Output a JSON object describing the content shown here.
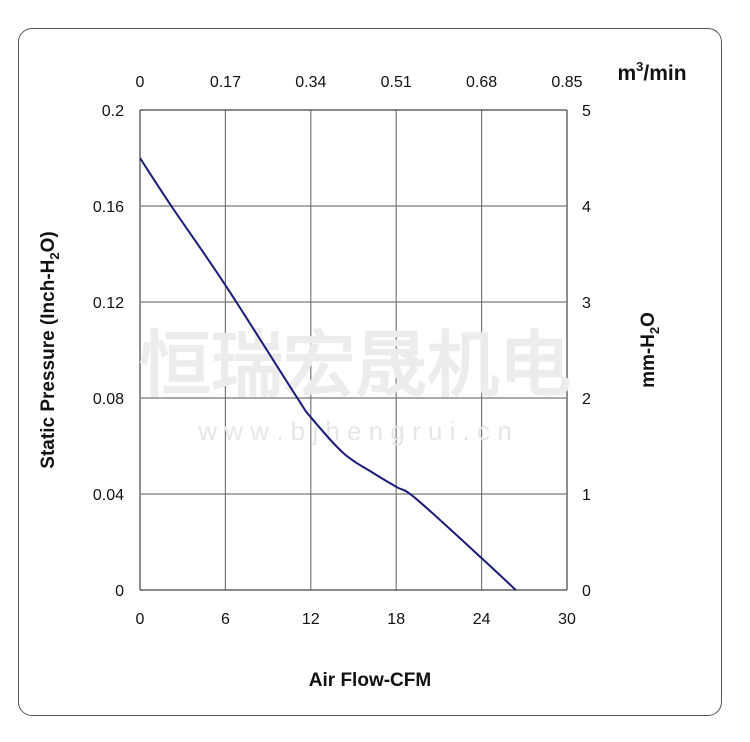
{
  "chart_data": {
    "type": "line",
    "title": "",
    "xlabel": "Air Flow-CFM",
    "ylabel": "Static Pressure (Inch-H2O)",
    "ylabel_right": "mm-H2O",
    "xlabel_top_unit": "m³/min",
    "xlim": [
      0,
      30
    ],
    "ylim": [
      0,
      0.2
    ],
    "ylim_right": [
      0,
      5
    ],
    "xlim_top": [
      0,
      0.85
    ],
    "x_ticks": [
      "0",
      "6",
      "12",
      "18",
      "24",
      "30"
    ],
    "y_ticks": [
      "0",
      "0.04",
      "0.08",
      "0.12",
      "0.16",
      "0.2"
    ],
    "y_ticks_right": [
      "0",
      "1",
      "2",
      "3",
      "4",
      "5"
    ],
    "x_ticks_top": [
      "0",
      "0.17",
      "0.34",
      "0.51",
      "0.68",
      "0.85"
    ],
    "grid": true,
    "line_color": "#1a1a7a",
    "series": [
      {
        "x": [
          0,
          2.2,
          6,
          11,
          12,
          14.3,
          16.4,
          18,
          19.4,
          24,
          26.4
        ],
        "y": [
          0.18,
          0.16,
          0.127,
          0.0805,
          0.072,
          0.057,
          0.0487,
          0.043,
          0.038,
          0.0133,
          0
        ]
      }
    ]
  },
  "watermark": {
    "brand": "恒瑞宏晟机电",
    "url": "w w w . b j h e n g r u i . c n"
  }
}
